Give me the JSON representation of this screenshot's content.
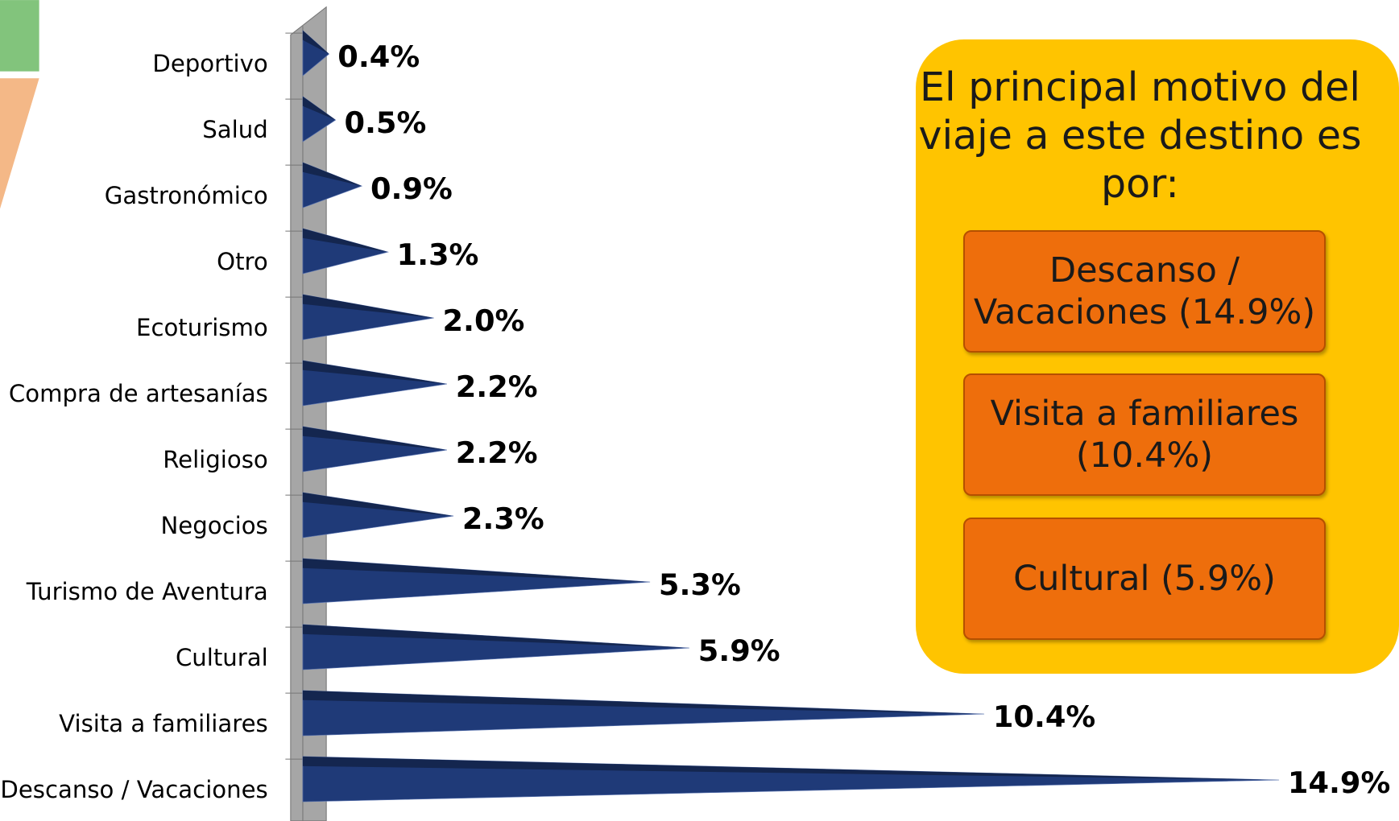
{
  "chart_data": {
    "type": "bar",
    "orientation": "horizontal",
    "categories": [
      "Deportivo",
      "Salud",
      "Gastronómico",
      "Otro",
      "Ecoturismo",
      "Compra de artesanías",
      "Religioso",
      "Negocios",
      "Turismo de Aventura",
      "Cultural",
      "Visita a familiares",
      "Descanso / Vacaciones"
    ],
    "values": [
      0.4,
      0.5,
      0.9,
      1.3,
      2.0,
      2.2,
      2.2,
      2.3,
      5.3,
      5.9,
      10.4,
      14.9
    ],
    "value_labels": [
      "0.4%",
      "0.5%",
      "0.9%",
      "1.3%",
      "2.0%",
      "2.2%",
      "2.2%",
      "2.3%",
      "5.3%",
      "5.9%",
      "10.4%",
      "14.9%"
    ],
    "color": "#1f3a78",
    "xlim": [
      0,
      15
    ]
  },
  "callout": {
    "title": "El principal motivo del viaje a este destino es por:",
    "items": [
      "Descanso / Vacaciones (14.9%)",
      "Visita a familiares (10.4%)",
      "Cultural (5.9%)"
    ]
  }
}
